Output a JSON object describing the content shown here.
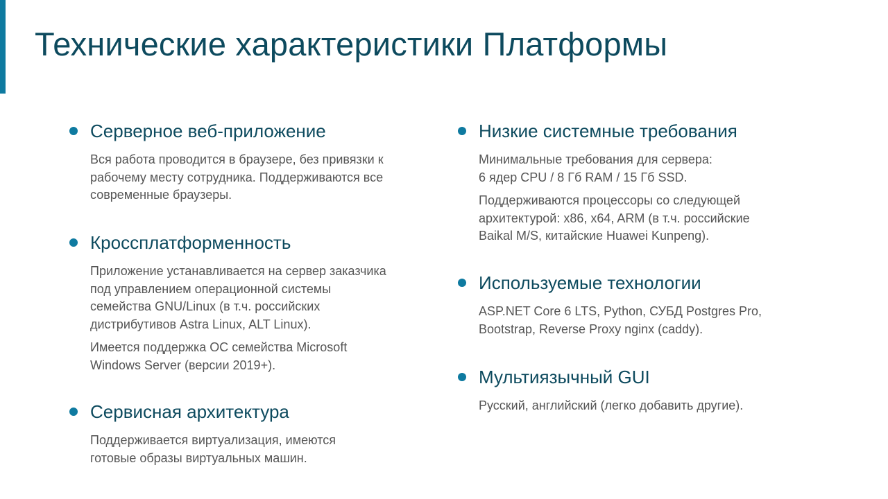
{
  "title": "Технические характеристики Платформы",
  "colors": {
    "accent": "#0e7aa0",
    "heading": "#0d4a5e",
    "body": "#555555"
  },
  "left_column": [
    {
      "heading": "Серверное веб-приложение",
      "paragraphs": [
        [
          "Вся работа проводится в браузере, без привязки к",
          "рабочему месту сотрудника. Поддерживаются все",
          "современные браузеры."
        ]
      ]
    },
    {
      "heading": "Кроссплатформенность",
      "paragraphs": [
        [
          "Приложение устанавливается на сервер заказчика",
          "под управлением операционной системы",
          "семейства GNU/Linux (в т.ч. российских",
          "дистрибутивов Astra Linux, ALT Linux)."
        ],
        [
          "Имеется поддержка ОС семейства Microsoft",
          "Windows Server (версии 2019+)."
        ]
      ]
    },
    {
      "heading": "Сервисная архитектура",
      "paragraphs": [
        [
          "Поддерживается виртуализация, имеются",
          "готовые образы виртуальных машин."
        ]
      ]
    }
  ],
  "right_column": [
    {
      "heading": "Низкие системные требования",
      "paragraphs": [
        [
          "Минимальные требования для сервера:",
          "6 ядер CPU / 8 Гб RAM / 15 Гб SSD."
        ],
        [
          "Поддерживаются процессоры со следующей",
          "архитектурой: x86, x64, ARM (в т.ч. российские",
          "Baikal M/S, китайские Huawei Kunpeng)."
        ]
      ]
    },
    {
      "heading": "Используемые технологии",
      "paragraphs": [
        [
          "ASP.NET Core 6 LTS, Python, СУБД Postgres Pro,",
          "Bootstrap, Reverse Proxy nginx (caddy)."
        ]
      ]
    },
    {
      "heading": "Мультиязычный GUI",
      "paragraphs": [
        [
          "Русский, английский (легко добавить другие)."
        ]
      ]
    }
  ]
}
